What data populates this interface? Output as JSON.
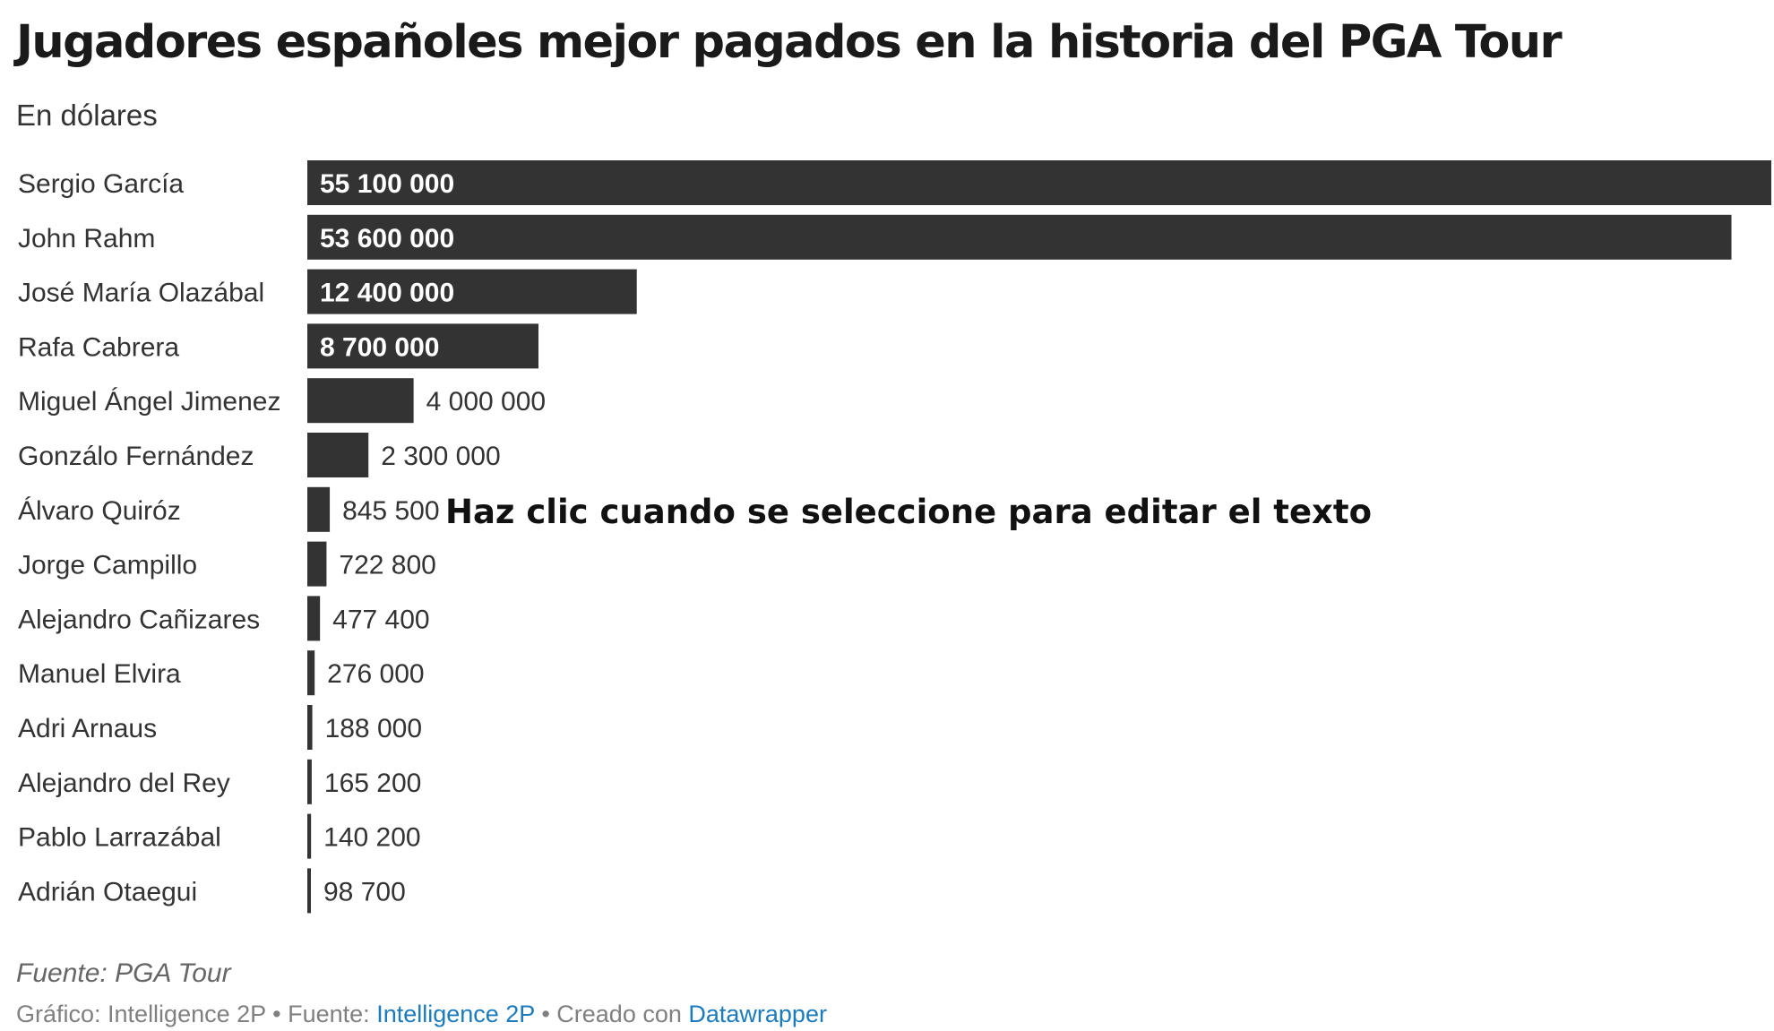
{
  "chart_data": {
    "type": "bar",
    "orientation": "horizontal",
    "title": "Jugadores españoles mejor pagados en la historia del PGA Tour",
    "subtitle": "En dólares",
    "categories": [
      "Sergio García",
      "John Rahm",
      "José María Olazábal",
      "Rafa Cabrera",
      "Miguel Ángel Jimenez",
      "Gonzálo Fernández",
      "Álvaro Quiróz",
      "Jorge Campillo",
      "Alejandro Cañizares",
      "Manuel Elvira",
      "Adri Arnaus",
      "Alejandro del Rey",
      "Pablo Larrazábal",
      "Adrián Otaegui"
    ],
    "values": [
      55100000,
      53600000,
      12400000,
      8700000,
      4000000,
      2300000,
      845500,
      722800,
      477400,
      276000,
      188000,
      165200,
      140200,
      98700
    ],
    "value_labels": [
      "55 100 000",
      "53 600 000",
      "12 400 000",
      "8 700 000",
      "4 000 000",
      "2 300 000",
      "845 500",
      "722 800",
      "477 400",
      "276 000",
      "188 000",
      "165 200",
      "140 200",
      "98 700"
    ],
    "bar_color": "#333333",
    "grid": false,
    "legend": "none",
    "xlim": [
      0,
      55100000
    ]
  },
  "overlay": {
    "text": "Haz clic cuando se seleccione para editar el texto"
  },
  "footer": {
    "source_note": "Fuente: PGA Tour",
    "credit_prefix": "Gráfico: Intelligence 2P • Fuente: ",
    "source_link": "Intelligence 2P",
    "created_with": " • Creado con ",
    "tool_link": "Datawrapper"
  }
}
